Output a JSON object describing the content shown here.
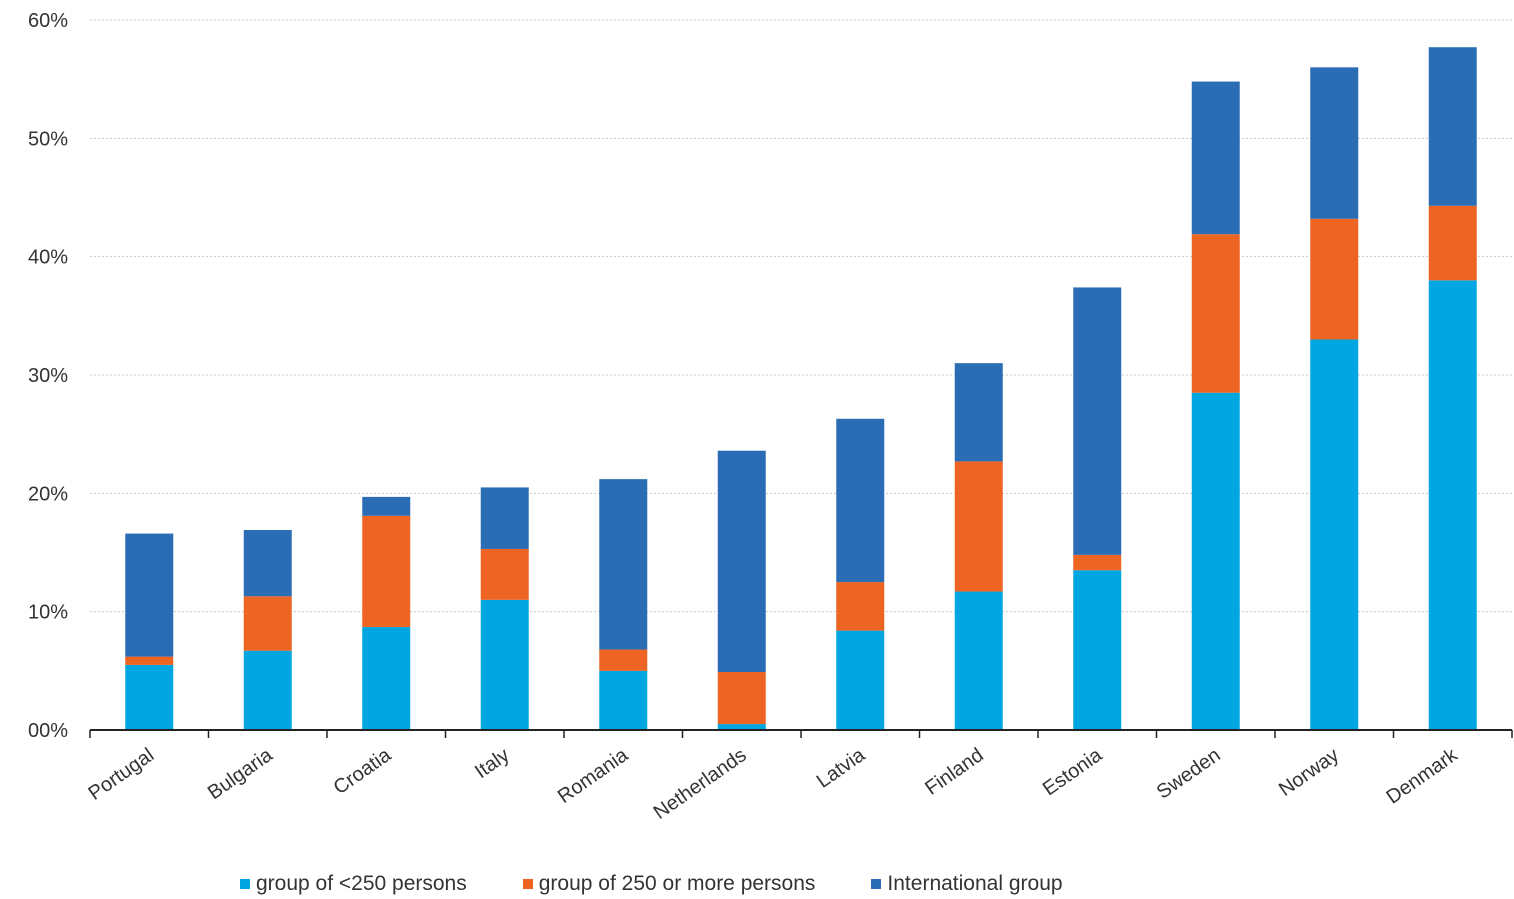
{
  "chart_data": {
    "type": "bar",
    "stacked": true,
    "categories": [
      "Portugal",
      "Bulgaria",
      "Croatia",
      "Italy",
      "Romania",
      "Netherlands",
      "Latvia",
      "Finland",
      "Estonia",
      "Sweden",
      "Norway",
      "Denmark"
    ],
    "series": [
      {
        "name": "group of <250 persons",
        "color": "#00a6e1",
        "values": [
          5.5,
          6.7,
          8.7,
          11.0,
          5.0,
          0.5,
          8.4,
          11.7,
          13.5,
          28.5,
          33.0,
          38.0
        ]
      },
      {
        "name": "group of 250 or more persons",
        "color": "#ee6422",
        "values": [
          0.7,
          4.6,
          9.4,
          4.3,
          1.8,
          4.4,
          4.1,
          11.0,
          1.3,
          13.4,
          10.2,
          6.3
        ]
      },
      {
        "name": "International group",
        "color": "#2b6db5",
        "values": [
          10.4,
          5.6,
          1.6,
          5.2,
          14.4,
          18.7,
          13.8,
          8.3,
          22.6,
          12.9,
          12.8,
          13.4
        ]
      }
    ],
    "ylim": [
      0,
      60
    ],
    "yticks": [
      "00%",
      "10%",
      "20%",
      "30%",
      "40%",
      "50%",
      "60%"
    ],
    "xlabel": "",
    "ylabel": "",
    "grid": true,
    "legend_position": "bottom"
  }
}
